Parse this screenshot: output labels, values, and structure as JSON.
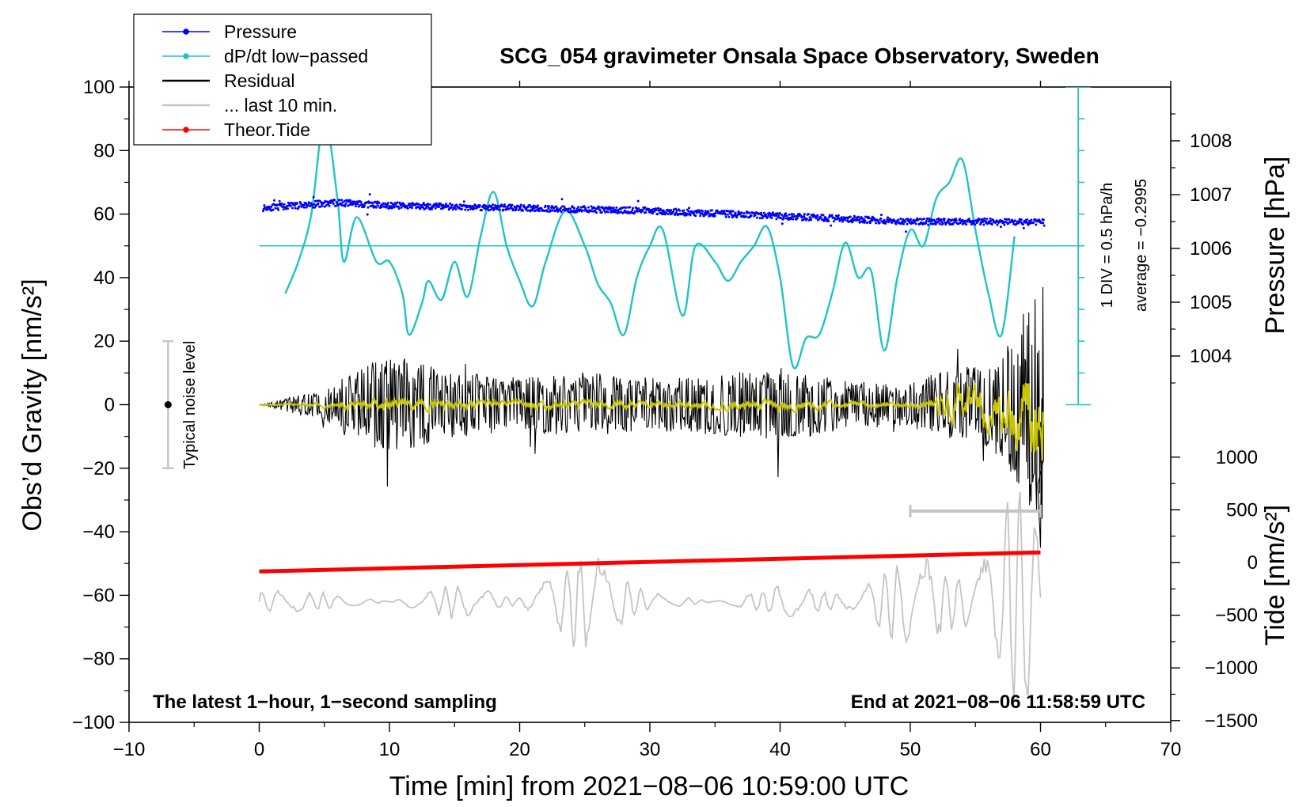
{
  "chart_data": {
    "type": "line",
    "title": "SCG_054 gravimeter Onsala Space Observatory, Sweden",
    "xlabel": "Time [min] from 2021−08−06 10:59:00 UTC",
    "ylabel_left": "Obs’d Gravity [nm/s²]",
    "ylabel_pressure": "Pressure [hPa]",
    "ylabel_tide": "Tide [nm/s²]",
    "xlim": [
      -10,
      70
    ],
    "ylim": [
      -100,
      100
    ],
    "x_ticks": [
      "−10",
      "0",
      "10",
      "20",
      "30",
      "40",
      "50",
      "60",
      "70"
    ],
    "y_ticks": [
      "100",
      "80",
      "60",
      "40",
      "20",
      "0",
      "−20",
      "−40",
      "−60",
      "−80",
      "−100"
    ],
    "pressure_ticks": [
      "1008",
      "1007",
      "1006",
      "1005",
      "1004"
    ],
    "tide_ticks": [
      "1000",
      "500",
      "0",
      "−500",
      "−1000",
      "−1500"
    ],
    "annotation_left": "The latest 1−hour, 1−second sampling",
    "annotation_right": "End at 2021−08−06 11:58:59 UTC",
    "div_label": "1 DIV = 0.5 hPa/h",
    "average_label": "average = −0.2995",
    "noise_label": "Typical noise level",
    "legend": [
      {
        "name": "Pressure",
        "color": "#0000ff",
        "marker": true
      },
      {
        "name": "dP/dt low−passed",
        "color": "#1fc4c4",
        "marker": true
      },
      {
        "name": "Residual",
        "color": "#000000",
        "marker": false
      },
      {
        "name": "... last 10 min.",
        "color": "#c4c4c4",
        "marker": false
      },
      {
        "name": "Theor.Tide",
        "color": "#ff0000",
        "marker": true
      }
    ],
    "series": [
      {
        "name": "Pressure",
        "unit": "hPa",
        "x": [
          0,
          6,
          10,
          20,
          30,
          40,
          50,
          55,
          60
        ],
        "values": [
          1006.75,
          1006.85,
          1006.8,
          1006.75,
          1006.7,
          1006.6,
          1006.5,
          1006.5,
          1006.48
        ]
      },
      {
        "name": "dP/dt low−passed",
        "unit": "hPa/h offset",
        "x": [
          2,
          3,
          4,
          5,
          6,
          6.5,
          7.5,
          9,
          10,
          11,
          11.5,
          12.5,
          13,
          14,
          15,
          16,
          17,
          18,
          19,
          20,
          21,
          22,
          23.5,
          25,
          26,
          27,
          28,
          29,
          30,
          31,
          32.5,
          33.5,
          35,
          36,
          37,
          38,
          39,
          40,
          41,
          42,
          43,
          44,
          45,
          46,
          47,
          48,
          49,
          50,
          51,
          52,
          53,
          54,
          55,
          56,
          57,
          58
        ],
        "values": [
          35,
          45,
          60,
          90,
          65,
          45,
          59,
          45,
          45,
          35,
          22,
          32,
          39,
          33,
          45,
          34,
          53,
          67,
          50,
          39,
          31,
          45,
          61,
          50,
          38,
          32,
          22,
          40,
          50,
          55,
          28,
          50,
          45,
          39,
          45,
          50,
          56,
          40,
          12,
          21,
          22,
          35,
          51,
          40,
          42,
          17,
          40,
          55,
          50,
          65,
          70,
          77,
          55,
          35,
          22,
          53
        ]
      },
      {
        "name": "Residual",
        "unit": "nm/s²",
        "x": [
          0,
          5,
          10,
          15,
          20,
          25,
          30,
          35,
          40,
          45,
          50,
          52,
          54,
          56,
          58,
          60
        ],
        "values": [
          0,
          6,
          19,
          12,
          10,
          12,
          10,
          11,
          14,
          9,
          8,
          12,
          14,
          16,
          27,
          47
        ]
      },
      {
        "name": "... last 10 min.",
        "unit": "nm/s² (scaled)",
        "x": [
          0,
          5,
          10,
          15,
          20,
          25,
          30,
          35,
          40,
          45,
          50,
          55,
          58,
          59.5,
          60
        ],
        "values": [
          -58,
          -65,
          -62,
          -68,
          -63,
          -44,
          -65,
          -62,
          -68,
          -60,
          -45,
          -55,
          -20,
          -102,
          -60
        ]
      },
      {
        "name": "Theor.Tide",
        "unit": "nm/s²",
        "x": [
          0,
          60
        ],
        "values": [
          -52.5,
          -46.5
        ]
      }
    ]
  }
}
